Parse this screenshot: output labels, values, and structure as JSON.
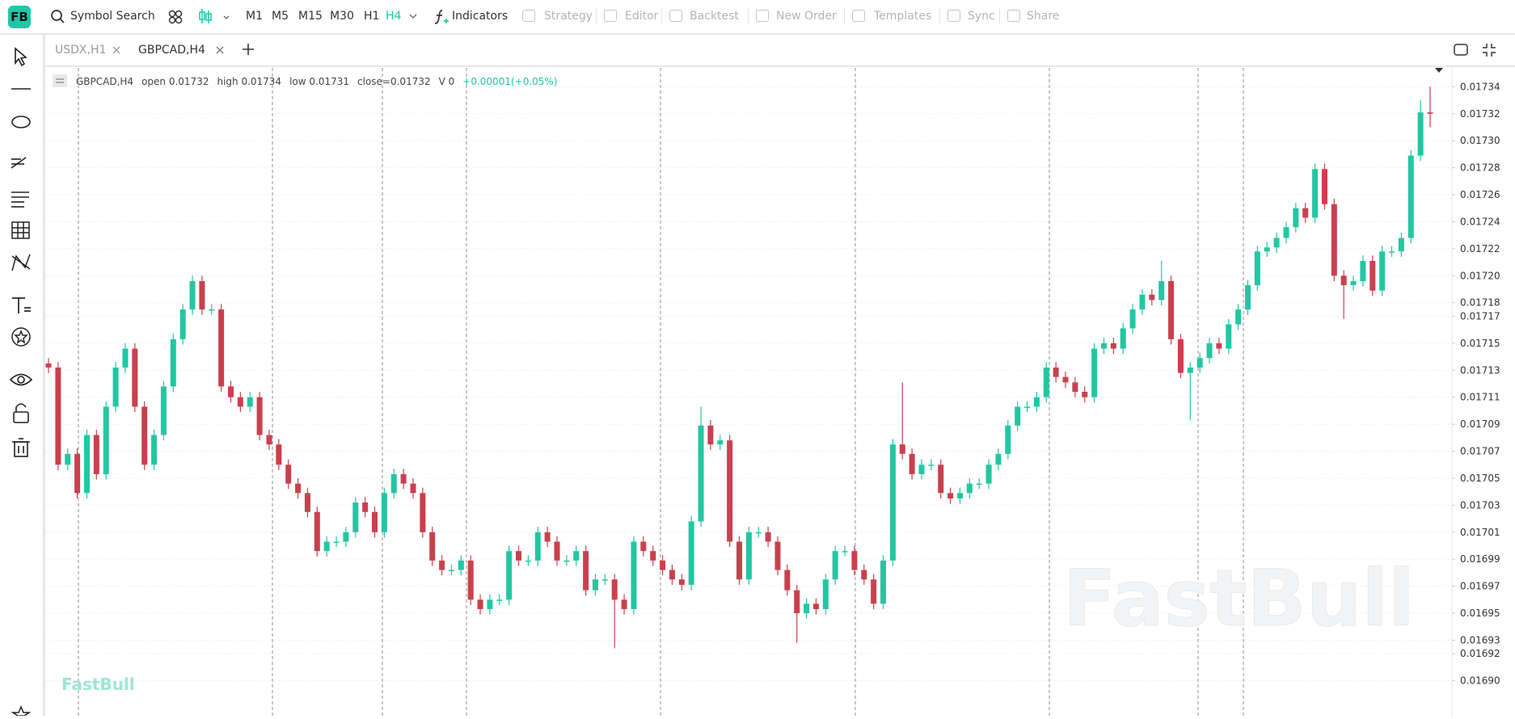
{
  "toolbar": {
    "logo": "FB",
    "search": "Symbol Search",
    "intervals": [
      "M1",
      "M5",
      "M15",
      "M30",
      "H1",
      "H4"
    ],
    "active_interval": "H4",
    "indicators": "Indicators",
    "actions": [
      "Strategy",
      "Editor",
      "Backtest",
      "New Order",
      "Templates",
      "Sync",
      "Share"
    ]
  },
  "tabs": [
    "USDX,H1",
    "GBPCAD,H4"
  ],
  "chart_data": {
    "type": "candlestick",
    "legend": {
      "symbol": "GBPCAD,H4",
      "items": [
        "open 0.01732",
        "high 0.01734",
        "low 0.01731",
        "close=0.01732",
        "V 0"
      ],
      "change": "+0.00001(+0.05%)"
    },
    "watermark": "FastBull",
    "up_color": "#22c7a2",
    "down_color": "#c9404e",
    "change_color": "#22c7a2",
    "grid": true,
    "ylim": [
      0.016874,
      0.017354
    ],
    "yticks": [
      {
        "value": 0.0169,
        "label": "0.01690"
      },
      0.01692,
      0.01693,
      0.01695,
      0.01697,
      0.01699,
      0.01701,
      0.01703,
      0.01705,
      0.01707,
      0.01709,
      0.01711,
      0.01713,
      0.01715,
      0.01717,
      0.01718,
      {
        "value": 0.0172,
        "label": "0.01720"
      },
      0.01722,
      0.01724,
      0.01726,
      0.01728,
      {
        "value": 0.0173,
        "label": "0.01730"
      },
      0.01732,
      0.01734
    ],
    "ohlc": [
      [
        0.017135,
        0.017139,
        0.017128,
        0.017132
      ],
      [
        0.017132,
        0.017136,
        0.017056,
        0.01706
      ],
      [
        0.01706,
        0.017072,
        0.017056,
        0.017068
      ],
      [
        0.017068,
        0.017072,
        0.017035,
        0.017039
      ],
      [
        0.017039,
        0.017086,
        0.017035,
        0.017082
      ],
      [
        0.017082,
        0.017086,
        0.017049,
        0.017053
      ],
      [
        0.017053,
        0.017107,
        0.017049,
        0.017103
      ],
      [
        0.017103,
        0.017136,
        0.017099,
        0.017132
      ],
      [
        0.017132,
        0.01715,
        0.017128,
        0.017146
      ],
      [
        0.017146,
        0.01715,
        0.017099,
        0.017103
      ],
      [
        0.017103,
        0.017107,
        0.017056,
        0.01706
      ],
      [
        0.01706,
        0.017086,
        0.017056,
        0.017082
      ],
      [
        0.017082,
        0.017122,
        0.017078,
        0.017118
      ],
      [
        0.017118,
        0.017157,
        0.017114,
        0.017153
      ],
      [
        0.017153,
        0.017179,
        0.017149,
        0.017175
      ],
      [
        0.017175,
        0.0172,
        0.017171,
        0.017196
      ],
      [
        0.017196,
        0.0172,
        0.017171,
        0.017175
      ],
      [
        0.017175,
        0.017179,
        0.017171,
        0.017175
      ],
      [
        0.017175,
        0.017179,
        0.017114,
        0.017118
      ],
      [
        0.017118,
        0.017122,
        0.017106,
        0.01711
      ],
      [
        0.01711,
        0.017114,
        0.017099,
        0.017103
      ],
      [
        0.017103,
        0.017114,
        0.017099,
        0.01711
      ],
      [
        0.01711,
        0.017114,
        0.017078,
        0.017082
      ],
      [
        0.017082,
        0.017086,
        0.017071,
        0.017075
      ],
      [
        0.017075,
        0.017079,
        0.017056,
        0.01706
      ],
      [
        0.01706,
        0.017064,
        0.017042,
        0.017046
      ],
      [
        0.017046,
        0.01705,
        0.017035,
        0.017039
      ],
      [
        0.017039,
        0.017043,
        0.017021,
        0.017025
      ],
      [
        0.017025,
        0.017029,
        0.016992,
        0.016996
      ],
      [
        0.016996,
        0.017007,
        0.016992,
        0.017003
      ],
      [
        0.017003,
        0.017007,
        0.016999,
        0.017003
      ],
      [
        0.017003,
        0.017014,
        0.016999,
        0.01701
      ],
      [
        0.01701,
        0.017036,
        0.017006,
        0.017032
      ],
      [
        0.017032,
        0.017036,
        0.017021,
        0.017025
      ],
      [
        0.017025,
        0.017029,
        0.017006,
        0.01701
      ],
      [
        0.01701,
        0.017043,
        0.017006,
        0.017039
      ],
      [
        0.017039,
        0.017057,
        0.017035,
        0.017053
      ],
      [
        0.017053,
        0.017057,
        0.017042,
        0.017046
      ],
      [
        0.017046,
        0.01705,
        0.017035,
        0.017039
      ],
      [
        0.017039,
        0.017043,
        0.017006,
        0.01701
      ],
      [
        0.01701,
        0.017014,
        0.016985,
        0.016989
      ],
      [
        0.016989,
        0.016993,
        0.016978,
        0.016982
      ],
      [
        0.016982,
        0.016986,
        0.016978,
        0.016982
      ],
      [
        0.016982,
        0.016993,
        0.016978,
        0.016989
      ],
      [
        0.016989,
        0.016993,
        0.016956,
        0.01696
      ],
      [
        0.01696,
        0.016964,
        0.016949,
        0.016953
      ],
      [
        0.016953,
        0.016964,
        0.016949,
        0.01696
      ],
      [
        0.01696,
        0.016964,
        0.016956,
        0.01696
      ],
      [
        0.01696,
        0.017,
        0.016956,
        0.016996
      ],
      [
        0.016996,
        0.017,
        0.016985,
        0.016989
      ],
      [
        0.016989,
        0.016993,
        0.016985,
        0.016989
      ],
      [
        0.016989,
        0.017014,
        0.016985,
        0.01701
      ],
      [
        0.01701,
        0.017014,
        0.016999,
        0.017003
      ],
      [
        0.017003,
        0.017007,
        0.016985,
        0.016989
      ],
      [
        0.016989,
        0.016993,
        0.016985,
        0.016989
      ],
      [
        0.016989,
        0.017,
        0.016985,
        0.016996
      ],
      [
        0.016996,
        0.017,
        0.016963,
        0.016967
      ],
      [
        0.016967,
        0.016979,
        0.016963,
        0.016975
      ],
      [
        0.016975,
        0.016979,
        0.016971,
        0.016975
      ],
      [
        0.016975,
        0.016979,
        0.016924,
        0.01696
      ],
      [
        0.01696,
        0.016964,
        0.016949,
        0.016953
      ],
      [
        0.016953,
        0.017007,
        0.016949,
        0.017003
      ],
      [
        0.017003,
        0.017007,
        0.016992,
        0.016996
      ],
      [
        0.016996,
        0.017,
        0.016985,
        0.016989
      ],
      [
        0.016989,
        0.016993,
        0.016978,
        0.016982
      ],
      [
        0.016982,
        0.016986,
        0.016971,
        0.016975
      ],
      [
        0.016975,
        0.016979,
        0.016967,
        0.016971
      ],
      [
        0.016971,
        0.017022,
        0.016967,
        0.017018
      ],
      [
        0.017018,
        0.017103,
        0.017014,
        0.017089
      ],
      [
        0.017089,
        0.017093,
        0.017071,
        0.017075
      ],
      [
        0.017075,
        0.017082,
        0.017071,
        0.017078
      ],
      [
        0.017078,
        0.017082,
        0.016999,
        0.017003
      ],
      [
        0.017003,
        0.017007,
        0.016971,
        0.016975
      ],
      [
        0.016975,
        0.017014,
        0.016971,
        0.01701
      ],
      [
        0.01701,
        0.017014,
        0.017006,
        0.01701
      ],
      [
        0.01701,
        0.017014,
        0.016999,
        0.017003
      ],
      [
        0.017003,
        0.017007,
        0.016978,
        0.016982
      ],
      [
        0.016982,
        0.016986,
        0.016963,
        0.016967
      ],
      [
        0.016967,
        0.016971,
        0.016928,
        0.01695
      ],
      [
        0.01695,
        0.016961,
        0.016946,
        0.016957
      ],
      [
        0.016957,
        0.016961,
        0.016949,
        0.016953
      ],
      [
        0.016953,
        0.016979,
        0.016949,
        0.016975
      ],
      [
        0.016975,
        0.017,
        0.016971,
        0.016996
      ],
      [
        0.016996,
        0.017,
        0.016992,
        0.016996
      ],
      [
        0.016996,
        0.017,
        0.016978,
        0.016982
      ],
      [
        0.016982,
        0.016986,
        0.016971,
        0.016975
      ],
      [
        0.016975,
        0.016979,
        0.016953,
        0.016957
      ],
      [
        0.016957,
        0.016993,
        0.016953,
        0.016989
      ],
      [
        0.016989,
        0.017079,
        0.016985,
        0.017075
      ],
      [
        0.017075,
        0.017121,
        0.017064,
        0.017068
      ],
      [
        0.017068,
        0.017072,
        0.017049,
        0.017053
      ],
      [
        0.017053,
        0.017064,
        0.017049,
        0.01706
      ],
      [
        0.01706,
        0.017064,
        0.017056,
        0.01706
      ],
      [
        0.01706,
        0.017064,
        0.017035,
        0.017039
      ],
      [
        0.017039,
        0.017043,
        0.017031,
        0.017035
      ],
      [
        0.017035,
        0.017043,
        0.017031,
        0.017039
      ],
      [
        0.017039,
        0.01705,
        0.017035,
        0.017046
      ],
      [
        0.017046,
        0.01705,
        0.017042,
        0.017046
      ],
      [
        0.017046,
        0.017064,
        0.017042,
        0.01706
      ],
      [
        0.01706,
        0.017072,
        0.017056,
        0.017068
      ],
      [
        0.017068,
        0.017093,
        0.017064,
        0.017089
      ],
      [
        0.017089,
        0.017107,
        0.017085,
        0.017103
      ],
      [
        0.017103,
        0.017107,
        0.017099,
        0.017103
      ],
      [
        0.017103,
        0.017114,
        0.017099,
        0.01711
      ],
      [
        0.01711,
        0.017136,
        0.017106,
        0.017132
      ],
      [
        0.017132,
        0.017136,
        0.017121,
        0.017125
      ],
      [
        0.017125,
        0.017129,
        0.017117,
        0.017121
      ],
      [
        0.017121,
        0.017125,
        0.01711,
        0.017114
      ],
      [
        0.017114,
        0.017118,
        0.017106,
        0.01711
      ],
      [
        0.01711,
        0.01715,
        0.017106,
        0.017146
      ],
      [
        0.017146,
        0.017154,
        0.017142,
        0.01715
      ],
      [
        0.01715,
        0.017154,
        0.017142,
        0.017146
      ],
      [
        0.017146,
        0.017165,
        0.017142,
        0.017161
      ],
      [
        0.017161,
        0.017179,
        0.017157,
        0.017175
      ],
      [
        0.017175,
        0.01719,
        0.017171,
        0.017186
      ],
      [
        0.017186,
        0.01719,
        0.017178,
        0.017182
      ],
      [
        0.017182,
        0.017211,
        0.017178,
        0.017196
      ],
      [
        0.017196,
        0.0172,
        0.017149,
        0.017153
      ],
      [
        0.017153,
        0.017157,
        0.017124,
        0.017128
      ],
      [
        0.017128,
        0.017136,
        0.017093,
        0.017132
      ],
      [
        0.017132,
        0.017143,
        0.017128,
        0.017139
      ],
      [
        0.017139,
        0.017154,
        0.017135,
        0.01715
      ],
      [
        0.01715,
        0.017154,
        0.017142,
        0.017146
      ],
      [
        0.017146,
        0.017168,
        0.017142,
        0.017164
      ],
      [
        0.017164,
        0.017179,
        0.01716,
        0.017175
      ],
      [
        0.017175,
        0.017197,
        0.017171,
        0.017193
      ],
      [
        0.017193,
        0.017222,
        0.017189,
        0.017218
      ],
      [
        0.017218,
        0.017225,
        0.017214,
        0.017221
      ],
      [
        0.017221,
        0.017232,
        0.017217,
        0.017228
      ],
      [
        0.017228,
        0.01724,
        0.017224,
        0.017236
      ],
      [
        0.017236,
        0.017254,
        0.017232,
        0.01725
      ],
      [
        0.01725,
        0.017254,
        0.017239,
        0.017243
      ],
      [
        0.017243,
        0.017283,
        0.017239,
        0.017279
      ],
      [
        0.017279,
        0.017283,
        0.017249,
        0.017253
      ],
      [
        0.017253,
        0.017257,
        0.017196,
        0.0172
      ],
      [
        0.0172,
        0.017204,
        0.017168,
        0.017193
      ],
      [
        0.017193,
        0.0172,
        0.017189,
        0.017196
      ],
      [
        0.017196,
        0.017215,
        0.017192,
        0.017211
      ],
      [
        0.017211,
        0.017215,
        0.017185,
        0.017189
      ],
      [
        0.017189,
        0.017222,
        0.017185,
        0.017218
      ],
      [
        0.017218,
        0.017222,
        0.017214,
        0.017218
      ],
      [
        0.017218,
        0.017232,
        0.017214,
        0.017228
      ],
      [
        0.017228,
        0.017293,
        0.017224,
        0.017289
      ],
      [
        0.017289,
        0.01733,
        0.017285,
        0.017321
      ],
      [
        0.017321,
        0.01734,
        0.01731,
        0.01732
      ]
    ]
  }
}
